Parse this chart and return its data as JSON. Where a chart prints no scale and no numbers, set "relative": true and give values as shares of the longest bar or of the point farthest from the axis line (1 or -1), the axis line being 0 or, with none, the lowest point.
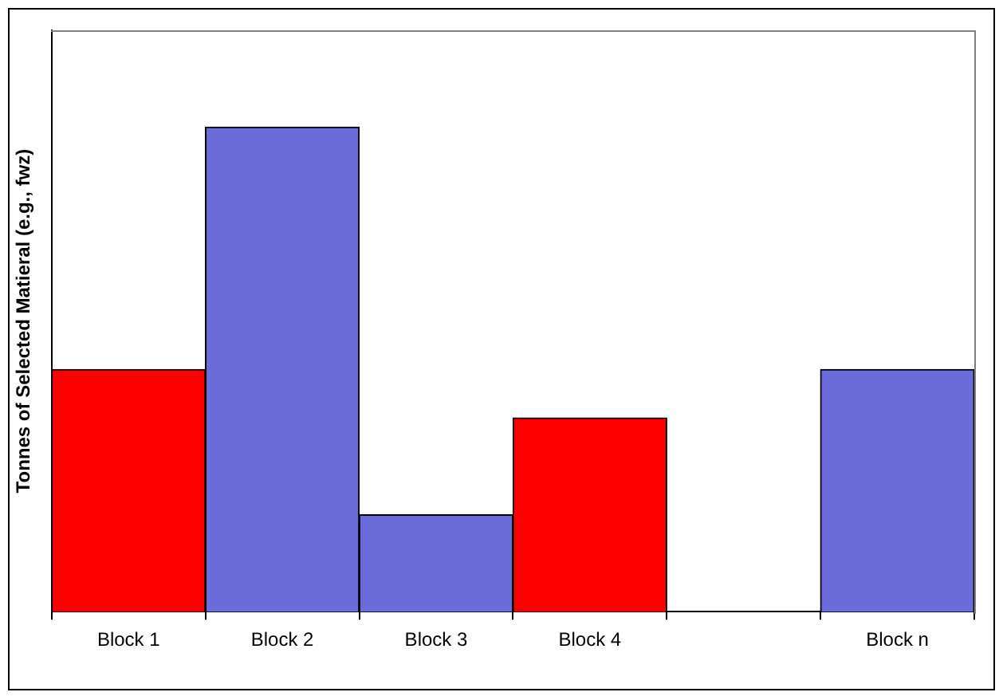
{
  "chart_data": {
    "type": "bar",
    "ylabel": "Tonnes of Selected Matieral (e.g., fwz)",
    "categories": [
      "Block 1",
      "Block 2",
      "Block 3",
      "Block 4",
      null,
      "Block n"
    ],
    "values": [
      0.5,
      1,
      0.2,
      0.4,
      null,
      0.5
    ],
    "colors": [
      "#ff0000",
      "#6b6bd9",
      "#6b6bd9",
      "#ff0000",
      null,
      "#6b6bd9"
    ],
    "relative": true,
    "grid": false,
    "legend": false
  }
}
